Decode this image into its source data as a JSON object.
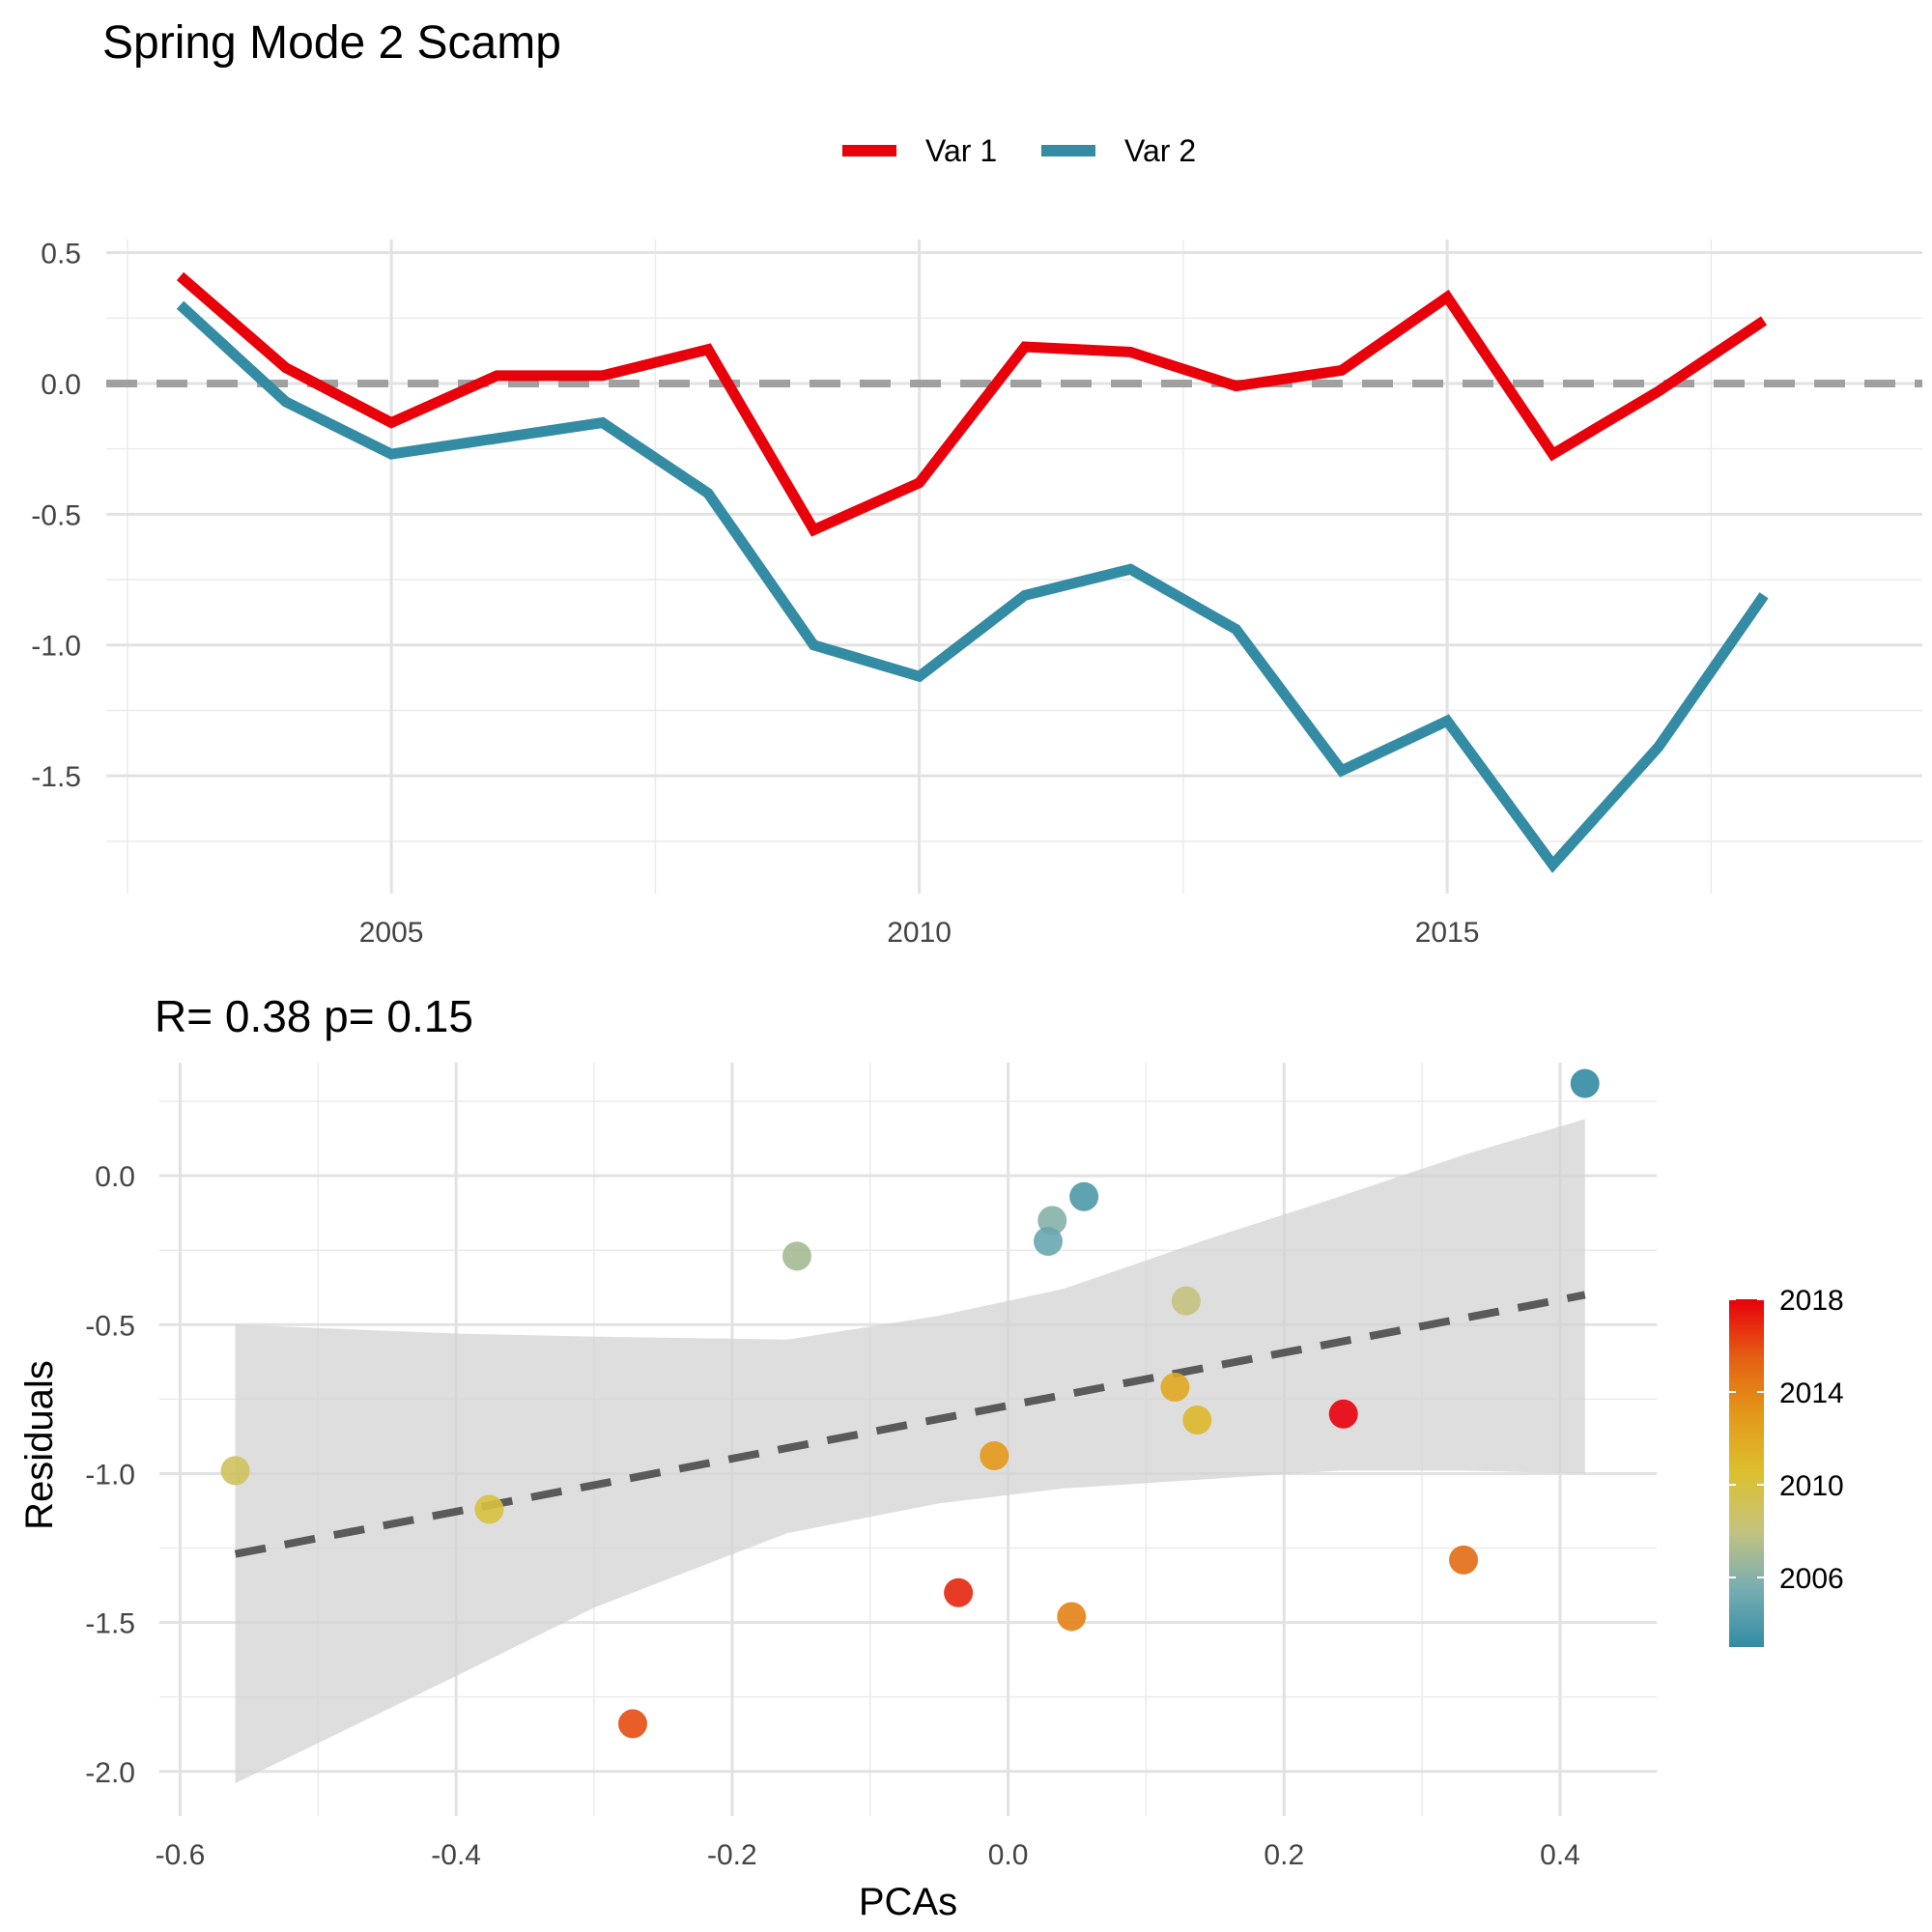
{
  "title": "Spring Mode 2 Scamp",
  "chart_data": [
    {
      "type": "line",
      "title": "",
      "xlabel": "",
      "ylabel": "",
      "xlim": [
        2002.3,
        2019.5
      ],
      "ylim": [
        -1.95,
        0.55
      ],
      "x_ticks": [
        2005,
        2010,
        2015
      ],
      "y_ticks": [
        0.5,
        0.0,
        -0.5,
        -1.0,
        -1.5
      ],
      "y_tick_labels": [
        "0.5",
        "0.0",
        "-0.5",
        "-1.0",
        "-1.5"
      ],
      "grid": true,
      "legend_position": "top",
      "reference_line": {
        "y": 0,
        "style": "dashed",
        "color": "#a0a0a0"
      },
      "x": [
        2003,
        2004,
        2005,
        2006,
        2007,
        2008,
        2009,
        2010,
        2011,
        2012,
        2013,
        2014,
        2015,
        2016,
        2017,
        2018
      ],
      "series": [
        {
          "name": "Var 1",
          "color": "#e8000b",
          "values": [
            0.41,
            0.06,
            -0.15,
            0.03,
            0.03,
            0.13,
            -0.56,
            -0.38,
            0.14,
            0.12,
            -0.01,
            0.05,
            0.33,
            -0.27,
            -0.03,
            0.24
          ]
        },
        {
          "name": "Var 2",
          "color": "#338ca3",
          "values": [
            0.3,
            -0.07,
            -0.27,
            -0.21,
            -0.15,
            -0.42,
            -1.0,
            -1.12,
            -0.81,
            -0.71,
            -0.94,
            -1.48,
            -1.29,
            -1.84,
            -1.39,
            -0.81
          ]
        }
      ]
    },
    {
      "type": "scatter",
      "title": "R= 0.38  p= 0.15",
      "xlabel": "PCAs",
      "ylabel": "Residuals",
      "xlim": [
        -0.615,
        0.47
      ],
      "ylim": [
        -2.15,
        0.38
      ],
      "x_ticks": [
        -0.6,
        -0.4,
        -0.2,
        0.0,
        0.2,
        0.4
      ],
      "x_tick_labels": [
        "-0.6",
        "-0.4",
        "-0.2",
        "0.0",
        "0.2",
        "0.4"
      ],
      "y_ticks": [
        0.0,
        -0.5,
        -1.0,
        -1.5,
        -2.0
      ],
      "y_tick_labels": [
        "0.0",
        "-0.5",
        "-1.0",
        "-1.5",
        "-2.0"
      ],
      "grid": true,
      "legend_position": "right",
      "color_scale": {
        "min": 2003,
        "max": 2018,
        "ticks": [
          2006,
          2010,
          2014,
          2018
        ],
        "stops": [
          "#338ca3",
          "#77adb3",
          "#c4c37e",
          "#dcc02f",
          "#e3991a",
          "#e35f12",
          "#e8000b"
        ]
      },
      "points": [
        {
          "x": 0.418,
          "y": 0.31,
          "year": 2003
        },
        {
          "x": -0.153,
          "y": -0.27,
          "year": 2007
        },
        {
          "x": 0.055,
          "y": -0.07,
          "year": 2004
        },
        {
          "x": 0.032,
          "y": -0.15,
          "year": 2006
        },
        {
          "x": 0.029,
          "y": -0.22,
          "year": 2005
        },
        {
          "x": 0.129,
          "y": -0.42,
          "year": 2008
        },
        {
          "x": -0.56,
          "y": -0.99,
          "year": 2009
        },
        {
          "x": -0.376,
          "y": -1.12,
          "year": 2010
        },
        {
          "x": 0.121,
          "y": -0.71,
          "year": 2012
        },
        {
          "x": 0.137,
          "y": -0.82,
          "year": 2011
        },
        {
          "x": -0.01,
          "y": -0.94,
          "year": 2013
        },
        {
          "x": 0.243,
          "y": -0.8,
          "year": 2018
        },
        {
          "x": 0.33,
          "y": -1.29,
          "year": 2015
        },
        {
          "x": -0.036,
          "y": -1.4,
          "year": 2017
        },
        {
          "x": 0.046,
          "y": -1.48,
          "year": 2014
        },
        {
          "x": -0.272,
          "y": -1.84,
          "year": 2016
        }
      ],
      "fit_line": {
        "x": [
          -0.56,
          0.418
        ],
        "y": [
          -1.27,
          -0.4
        ],
        "style": "dashed",
        "color": "#5a5a5a"
      },
      "confidence_band": {
        "x": [
          -0.56,
          -0.4,
          -0.3,
          -0.16,
          -0.05,
          0.04,
          0.14,
          0.24,
          0.33,
          0.418
        ],
        "upper": [
          -0.5,
          -0.53,
          -0.54,
          -0.55,
          -0.47,
          -0.38,
          -0.22,
          -0.07,
          0.07,
          0.19
        ],
        "lower": [
          -2.04,
          -1.68,
          -1.45,
          -1.2,
          -1.1,
          -1.05,
          -1.02,
          -0.99,
          -0.99,
          -1.0
        ]
      }
    }
  ]
}
